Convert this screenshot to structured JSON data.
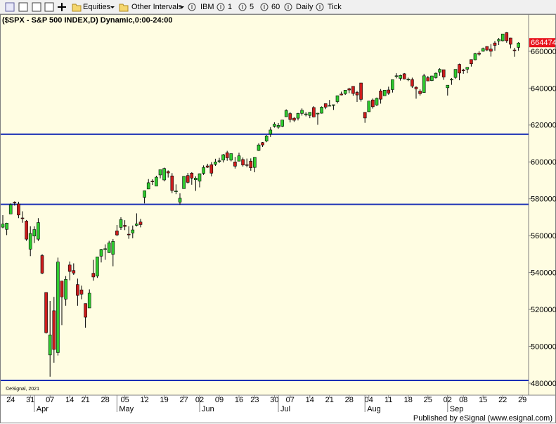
{
  "toolbar": {
    "menus": [
      "Equities",
      "Other Intervals"
    ],
    "buttons": [
      "IBM",
      "1",
      "5",
      "60",
      "Daily",
      "Tick"
    ]
  },
  "chart_data": {
    "type": "candlestick",
    "title": "($SPX - S&P 500 INDEX,D) Dynamic,0:00-24:00",
    "open": [
      564600,
      563400,
      571800,
      578100,
      577200,
      569600,
      567900,
      552700,
      559800,
      558100,
      549200,
      529200,
      495300,
      519300,
      496600,
      535400,
      525600,
      544100,
      541100,
      533500,
      530600,
      523200,
      520800,
      539600,
      538100,
      548900,
      552900,
      550800,
      549900,
      562600,
      564500,
      565600,
      560800,
      561500,
      565600,
      567400,
      580800,
      585300,
      589600,
      586900,
      592900,
      590200,
      594800,
      592400,
      584200,
      578200,
      585500,
      592600,
      593900,
      590300,
      589600,
      593800,
      597800,
      598500,
      598700,
      600400,
      601000,
      605000,
      601000,
      600000,
      600400,
      601300,
      598500,
      600400,
      597000,
      606200,
      610500,
      611300,
      615100,
      619300,
      618800,
      619300,
      624500,
      626200,
      623700,
      623700,
      626300,
      625600,
      625200,
      629500,
      626000,
      626400,
      631600,
      630400,
      630700,
      632700,
      636800,
      637000,
      639700,
      641000,
      637700,
      642800,
      626900,
      627200,
      633600,
      630900,
      638500,
      635900,
      639000,
      639200,
      646400,
      645300,
      647800,
      644500,
      644700,
      640500,
      638400,
      637600,
      645700,
      644100,
      645700,
      648600,
      650000,
      640200,
      644800,
      645800,
      652900,
      649800,
      650300,
      655500,
      655400,
      659000,
      660000,
      662600,
      661200,
      664500,
      665600,
      665700,
      670100,
      667200,
      660700,
      662100
    ],
    "high": [
      571100,
      567000,
      577500,
      578600,
      578400,
      573200,
      568500,
      565100,
      565100,
      569500,
      550000,
      529300,
      524600,
      526800,
      548100,
      535400,
      538100,
      546000,
      545000,
      536700,
      532900,
      523300,
      530900,
      546900,
      548500,
      552800,
      555300,
      557200,
      558200,
      565800,
      570000,
      568400,
      565100,
      565500,
      572100,
      569100,
      584500,
      590700,
      590600,
      592500,
      595900,
      596900,
      595400,
      593900,
      587800,
      583000,
      592200,
      594000,
      594400,
      592200,
      593700,
      598100,
      599000,
      599900,
      601700,
      602200,
      604300,
      606000,
      604600,
      602700,
      605000,
      602400,
      601800,
      601900,
      602600,
      610100,
      610800,
      614600,
      618800,
      621500,
      621100,
      622800,
      628500,
      627000,
      624300,
      626600,
      629000,
      627000,
      627000,
      630200,
      626600,
      630100,
      631600,
      633600,
      631000,
      636000,
      638100,
      639000,
      640200,
      641000,
      638500,
      642800,
      627000,
      633000,
      634400,
      634900,
      639500,
      639000,
      640800,
      644600,
      648100,
      647300,
      648200,
      645700,
      645700,
      641000,
      639400,
      647800,
      646600,
      646700,
      648500,
      650800,
      650000,
      641600,
      645500,
      650200,
      653300,
      650500,
      651300,
      655600,
      659200,
      660100,
      662000,
      662700,
      663900,
      665600,
      667200,
      669400,
      670400,
      667300,
      661900,
      664900
    ],
    "low": [
      564000,
      560300,
      571800,
      576300,
      569500,
      567000,
      557200,
      548900,
      556000,
      557100,
      539100,
      506900,
      483500,
      491100,
      495000,
      511500,
      522000,
      535800,
      538700,
      522000,
      525500,
      510100,
      520800,
      535600,
      537100,
      545500,
      546900,
      550600,
      543400,
      559800,
      563100,
      563000,
      558300,
      558600,
      565000,
      564500,
      577500,
      585200,
      587500,
      586800,
      591100,
      589500,
      591500,
      583100,
      582500,
      576800,
      585500,
      588300,
      587600,
      584300,
      586200,
      592900,
      596700,
      592200,
      597800,
      599400,
      599700,
      600600,
      600300,
      596400,
      600400,
      597500,
      597100,
      595200,
      594400,
      605900,
      608100,
      610700,
      613500,
      618600,
      618000,
      618900,
      624500,
      621400,
      621700,
      622500,
      625100,
      624700,
      623700,
      624200,
      620100,
      626200,
      628600,
      630300,
      628200,
      631700,
      636100,
      636300,
      637300,
      635900,
      632500,
      632700,
      621200,
      627200,
      628900,
      630300,
      631600,
      635800,
      636400,
      637600,
      645300,
      644100,
      644800,
      643800,
      640100,
      634300,
      636000,
      637500,
      643900,
      643800,
      645200,
      646700,
      644500,
      636000,
      641800,
      645000,
      644300,
      647800,
      648100,
      651700,
      655100,
      657500,
      659800,
      660100,
      657100,
      660300,
      663400,
      665300,
      664600,
      661600,
      657000,
      660300
    ],
    "close": [
      566300,
      566800,
      576800,
      577700,
      571200,
      569300,
      558100,
      561200,
      563300,
      567100,
      539700,
      507400,
      506200,
      498300,
      545700,
      526800,
      536300,
      540600,
      539700,
      527600,
      528300,
      515800,
      528800,
      537600,
      548500,
      552500,
      552900,
      556100,
      556900,
      560400,
      568700,
      565000,
      560700,
      563100,
      566400,
      566000,
      584400,
      588700,
      589300,
      591700,
      595800,
      596400,
      594000,
      584500,
      584200,
      580300,
      592200,
      588900,
      591200,
      591200,
      593600,
      597000,
      597100,
      593900,
      600000,
      600600,
      603900,
      602200,
      604500,
      597700,
      603300,
      598300,
      598100,
      596800,
      602500,
      609200,
      609200,
      614100,
      617300,
      620500,
      619800,
      622700,
      627900,
      623000,
      622600,
      626300,
      628000,
      626000,
      626900,
      624400,
      626400,
      629700,
      629700,
      630600,
      631000,
      635900,
      636300,
      638900,
      639000,
      637100,
      636300,
      633900,
      623800,
      633000,
      629900,
      634500,
      634000,
      638900,
      637300,
      644600,
      646700,
      646900,
      645000,
      644900,
      641100,
      639600,
      637000,
      646700,
      643900,
      646600,
      648100,
      650200,
      646000,
      641600,
      644800,
      650200,
      648200,
      649500,
      651300,
      653200,
      658700,
      658400,
      661500,
      660700,
      660000,
      663200,
      666400,
      669400,
      665700,
      663800,
      660500,
      664474
    ],
    "last_price": 664474,
    "xticks": [
      {
        "value": 2,
        "label": "24"
      },
      {
        "value": 7,
        "label": "31"
      },
      {
        "value": 12,
        "label": "07"
      },
      {
        "value": 17,
        "label": "14"
      },
      {
        "value": 21,
        "label": "21"
      },
      {
        "value": 26,
        "label": "28"
      },
      {
        "value": 31,
        "label": "05"
      },
      {
        "value": 36,
        "label": "12"
      },
      {
        "value": 41,
        "label": "19"
      },
      {
        "value": 46,
        "label": "27"
      },
      {
        "value": 50,
        "label": "02"
      },
      {
        "value": 55,
        "label": "09"
      },
      {
        "value": 60,
        "label": "16"
      },
      {
        "value": 64,
        "label": "23"
      },
      {
        "value": 69,
        "label": "30"
      },
      {
        "value": 73,
        "label": "07"
      },
      {
        "value": 78,
        "label": "14"
      },
      {
        "value": 83,
        "label": "21"
      },
      {
        "value": 88,
        "label": "28"
      },
      {
        "value": 93,
        "label": "04"
      },
      {
        "value": 98,
        "label": "11"
      },
      {
        "value": 103,
        "label": "18"
      },
      {
        "value": 108,
        "label": "25"
      },
      {
        "value": 113,
        "label": "02"
      },
      {
        "value": 117,
        "label": "08"
      },
      {
        "value": 122,
        "label": "15"
      },
      {
        "value": 127,
        "label": "22"
      },
      {
        "value": 132,
        "label": "29"
      }
    ],
    "month_ticks": [
      {
        "value": 8,
        "label": "Apr"
      },
      {
        "value": 29,
        "label": "May"
      },
      {
        "value": 50,
        "label": "Jun"
      },
      {
        "value": 70,
        "label": "Jul"
      },
      {
        "value": 92,
        "label": "Aug"
      },
      {
        "value": 113,
        "label": "Sep"
      }
    ],
    "ylim": [
      473500,
      679800
    ],
    "yticks": [
      480000,
      500000,
      520000,
      540000,
      560000,
      580000,
      600000,
      620000,
      640000,
      660000
    ],
    "hlines": [
      615000,
      577000,
      481500
    ],
    "hline_color": "#1a2fb5",
    "up_color": "#2ecc2e",
    "down_color": "#cc1c1c",
    "copyright": "©eSignal, 2021",
    "footer": "Published by eSignal (www.esignal.com)"
  }
}
